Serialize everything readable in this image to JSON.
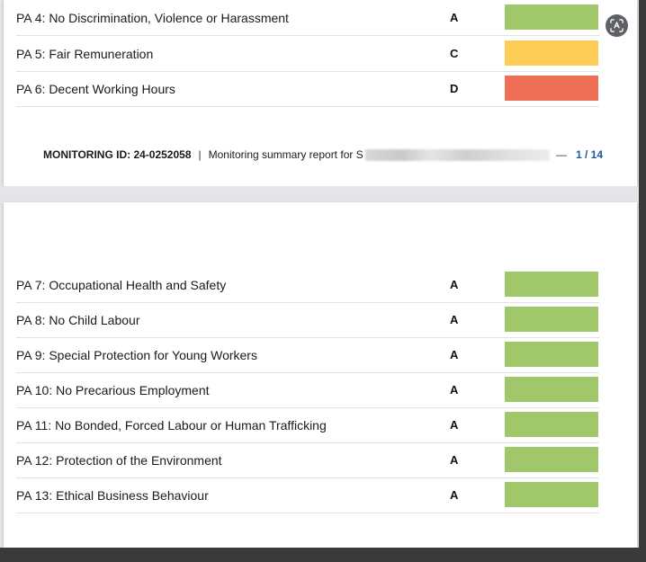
{
  "colors": {
    "A": "#a0c86a",
    "C": "#fdcd57",
    "D": "#ef6f56"
  },
  "page1": {
    "rows": [
      {
        "label": "PA 4: No Discrimination, Violence or Harassment",
        "rating": "A",
        "bar_color": "#a0c86a"
      },
      {
        "label": "PA 5: Fair Remuneration",
        "rating": "C",
        "bar_color": "#fdcd57"
      },
      {
        "label": "PA 6: Decent Working Hours",
        "rating": "D",
        "bar_color": "#ef6f56"
      }
    ],
    "footer": {
      "monitoring_id": "MONITORING ID: 24-0252058",
      "separator": "|",
      "summary_text": "Monitoring summary report for S",
      "dash": "—",
      "page_indicator": "1 / 14"
    }
  },
  "page2": {
    "rows": [
      {
        "label": "PA 7: Occupational Health and Safety",
        "rating": "A",
        "bar_color": "#a0c86a"
      },
      {
        "label": "PA 8: No Child Labour",
        "rating": "A",
        "bar_color": "#a0c86a"
      },
      {
        "label": "PA 9: Special Protection for Young Workers",
        "rating": "A",
        "bar_color": "#a0c86a"
      },
      {
        "label": "PA 10: No Precarious Employment",
        "rating": "A",
        "bar_color": "#a0c86a"
      },
      {
        "label": "PA 11: No Bonded, Forced Labour or Human Trafficking",
        "rating": "A",
        "bar_color": "#a0c86a"
      },
      {
        "label": "PA 12: Protection of the Environment",
        "rating": "A",
        "bar_color": "#a0c86a"
      },
      {
        "label": "PA 13: Ethical Business Behaviour",
        "rating": "A",
        "bar_color": "#a0c86a"
      }
    ]
  },
  "scan_button": {
    "icon": "scan-text-icon"
  }
}
